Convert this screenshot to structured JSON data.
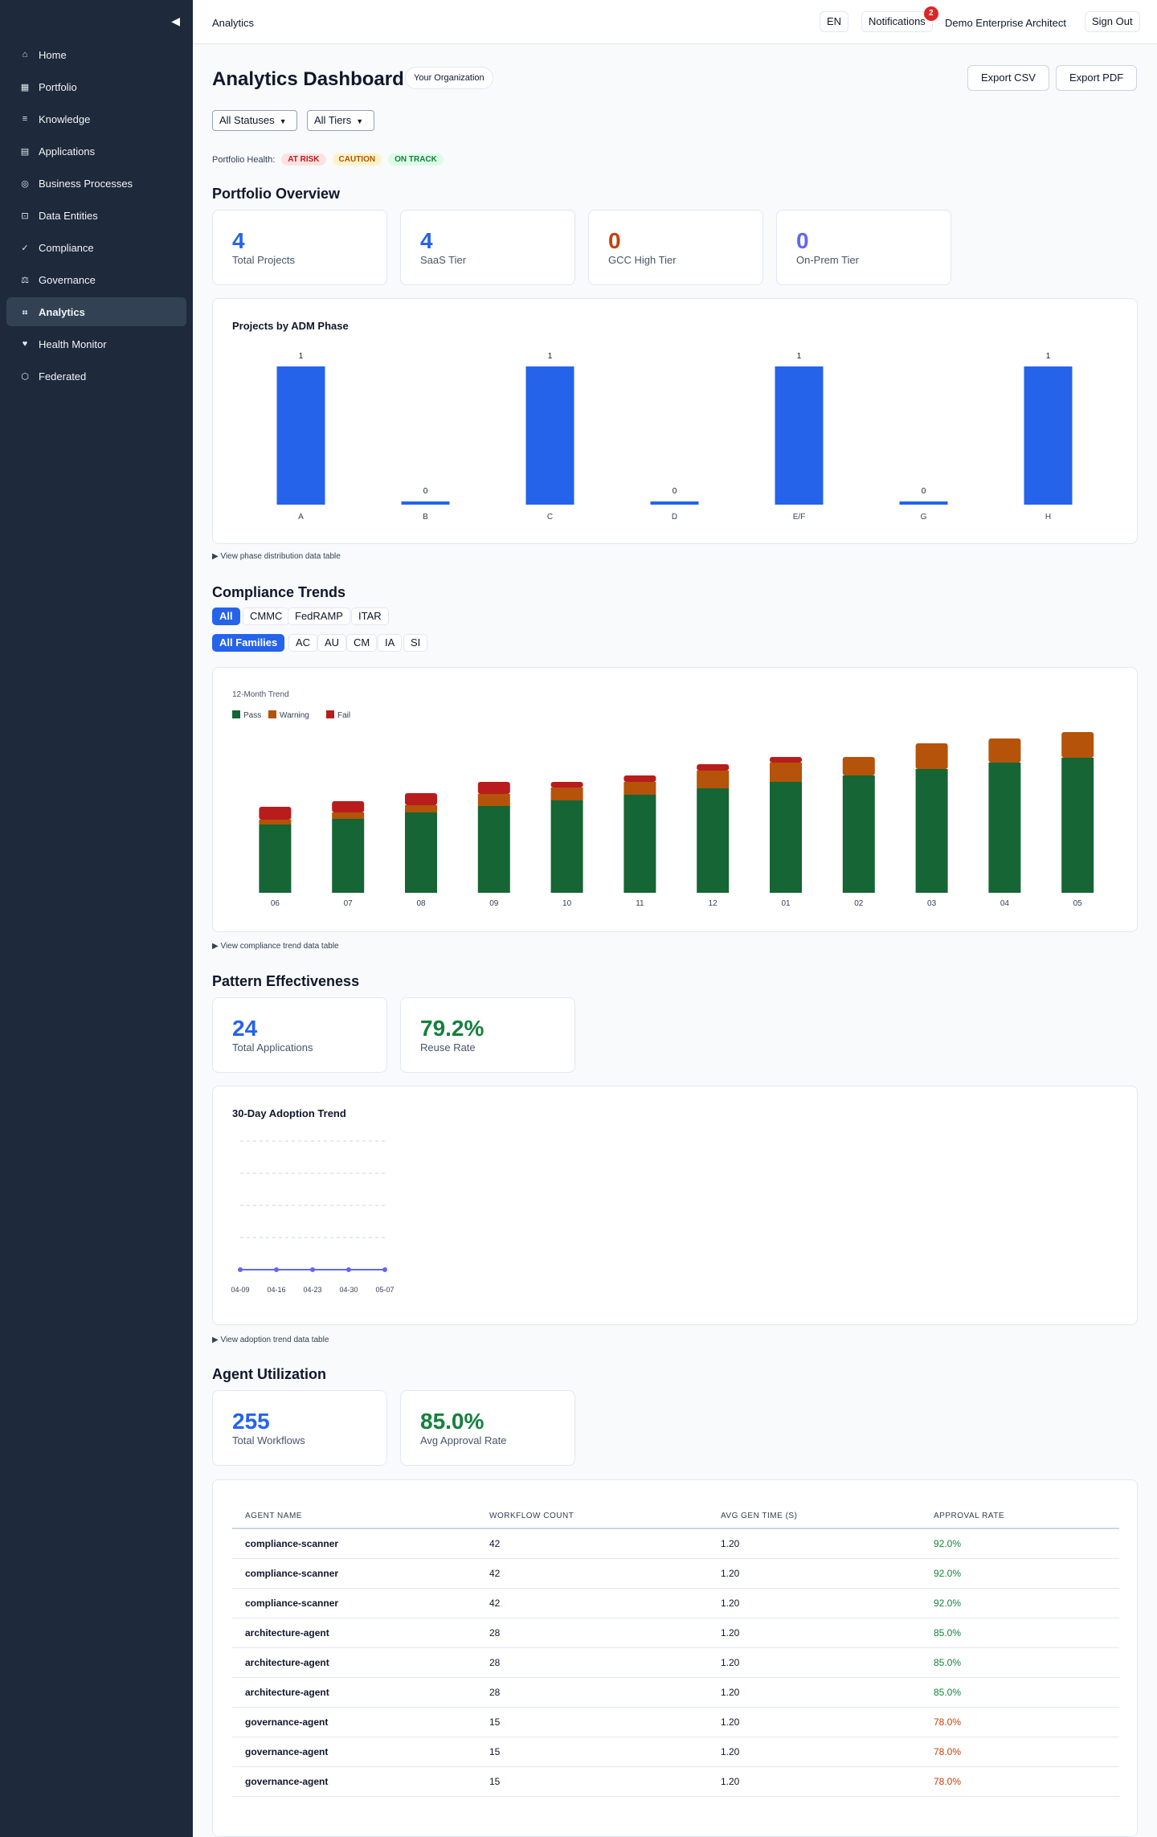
{
  "sidebar": {
    "items": [
      {
        "label": "Home",
        "icon": "home-icon",
        "glyph": "⌂"
      },
      {
        "label": "Portfolio",
        "icon": "grid-icon",
        "glyph": "▦"
      },
      {
        "label": "Knowledge",
        "icon": "list-icon",
        "glyph": "≡"
      },
      {
        "label": "Applications",
        "icon": "table-icon",
        "glyph": "▤"
      },
      {
        "label": "Business Processes",
        "icon": "target-icon",
        "glyph": "◎"
      },
      {
        "label": "Data Entities",
        "icon": "database-icon",
        "glyph": "⊡"
      },
      {
        "label": "Compliance",
        "icon": "check-icon",
        "glyph": "✓"
      },
      {
        "label": "Governance",
        "icon": "scale-icon",
        "glyph": "⚖"
      },
      {
        "label": "Analytics",
        "icon": "dots-icon",
        "glyph": "⠶"
      },
      {
        "label": "Health Monitor",
        "icon": "heart-icon",
        "glyph": "♥"
      },
      {
        "label": "Federated",
        "icon": "hexagon-icon",
        "glyph": "⬡"
      }
    ],
    "active": "Analytics"
  },
  "topbar": {
    "breadcrumb": "Analytics",
    "lang": "EN",
    "notifications_label": "Notifications",
    "notifications_count": "2",
    "user": "Demo Enterprise Architect",
    "signout": "Sign Out"
  },
  "header": {
    "title": "Analytics Dashboard",
    "org": "Your Organization",
    "export_csv": "Export CSV",
    "export_pdf": "Export PDF"
  },
  "filters": {
    "status": "All Statuses",
    "tier": "All Tiers"
  },
  "health": {
    "label": "Portfolio Health:",
    "at_risk": "AT RISK",
    "caution": "CAUTION",
    "on_track": "ON TRACK"
  },
  "portfolio": {
    "heading": "Portfolio Overview",
    "stats": [
      {
        "value": "4",
        "label": "Total Projects",
        "color": "#2563eb"
      },
      {
        "value": "4",
        "label": "SaaS Tier",
        "color": "#2563eb"
      },
      {
        "value": "0",
        "label": "GCC High Tier",
        "color": "#c2410c"
      },
      {
        "value": "0",
        "label": "On-Prem Tier",
        "color": "#6366f1"
      }
    ],
    "phase_chart_title": "Projects by ADM Phase",
    "phase_table_link": "View phase distribution data table"
  },
  "compliance": {
    "heading": "Compliance Trends",
    "frameworks": [
      "All",
      "CMMC",
      "FedRAMP",
      "ITAR"
    ],
    "families": [
      "All Families",
      "AC",
      "AU",
      "CM",
      "IA",
      "SI"
    ],
    "trend_title": "12-Month Trend",
    "legend": [
      "Pass",
      "Warning",
      "Fail"
    ],
    "trend_table_link": "View compliance trend data table"
  },
  "pattern": {
    "heading": "Pattern Effectiveness",
    "stats": [
      {
        "value": "24",
        "label": "Total Applications",
        "color": "#2563eb"
      },
      {
        "value": "79.2%",
        "label": "Reuse Rate",
        "color": "#15803d"
      }
    ],
    "adoption_title": "30-Day Adoption Trend",
    "adoption_table_link": "View adoption trend data table"
  },
  "agents": {
    "heading": "Agent Utilization",
    "stats": [
      {
        "value": "255",
        "label": "Total Workflows",
        "color": "#2563eb"
      },
      {
        "value": "85.0%",
        "label": "Avg Approval Rate",
        "color": "#15803d"
      }
    ],
    "columns": [
      "AGENT NAME",
      "WORKFLOW COUNT",
      "AVG GEN TIME (S)",
      "APPROVAL RATE"
    ],
    "rows": [
      [
        "compliance-scanner",
        "42",
        "1.20",
        "92.0%"
      ],
      [
        "compliance-scanner",
        "42",
        "1.20",
        "92.0%"
      ],
      [
        "compliance-scanner",
        "42",
        "1.20",
        "92.0%"
      ],
      [
        "architecture-agent",
        "28",
        "1.20",
        "85.0%"
      ],
      [
        "architecture-agent",
        "28",
        "1.20",
        "85.0%"
      ],
      [
        "architecture-agent",
        "28",
        "1.20",
        "85.0%"
      ],
      [
        "governance-agent",
        "15",
        "1.20",
        "78.0%"
      ],
      [
        "governance-agent",
        "15",
        "1.20",
        "78.0%"
      ],
      [
        "governance-agent",
        "15",
        "1.20",
        "78.0%"
      ]
    ]
  },
  "chart_data": [
    {
      "type": "bar",
      "title": "Projects by ADM Phase",
      "categories": [
        "A",
        "B",
        "C",
        "D",
        "E/F",
        "G",
        "H"
      ],
      "values": [
        1,
        0,
        1,
        0,
        1,
        0,
        1
      ],
      "ylim": [
        0,
        1
      ],
      "color": "#2563eb"
    },
    {
      "type": "bar",
      "stacked": true,
      "title": "12-Month Trend",
      "categories": [
        "06",
        "07",
        "08",
        "09",
        "10",
        "11",
        "12",
        "01",
        "02",
        "03",
        "04",
        "05"
      ],
      "series": [
        {
          "name": "Pass",
          "color": "#166534",
          "values": [
            85,
            92,
            100,
            108,
            115,
            122,
            130,
            138,
            146,
            154,
            162,
            168
          ]
        },
        {
          "name": "Warning",
          "color": "#b45309",
          "values": [
            6,
            8,
            9,
            15,
            16,
            16,
            22,
            24,
            23,
            32,
            30,
            32
          ]
        },
        {
          "name": "Fail",
          "color": "#b91c1c",
          "values": [
            16,
            14,
            15,
            15,
            7,
            8,
            8,
            7,
            0,
            0,
            0,
            0
          ]
        }
      ],
      "ylim": [
        0,
        210
      ],
      "legend": "top-left"
    },
    {
      "type": "line",
      "title": "30-Day Adoption Trend",
      "x": [
        "04-09",
        "04-16",
        "04-23",
        "04-30",
        "05-07"
      ],
      "values": [
        0,
        0,
        0,
        0,
        0
      ],
      "ylim": [
        0,
        4
      ],
      "color": "#6366f1",
      "grid": true
    }
  ]
}
